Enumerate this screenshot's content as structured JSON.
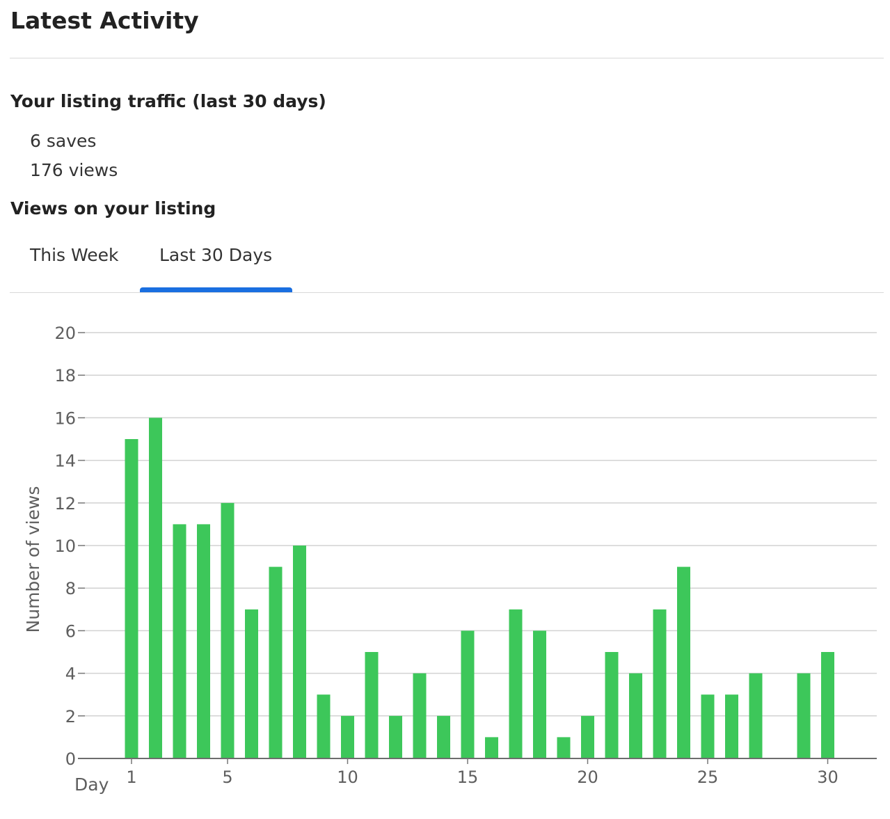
{
  "header": {
    "title": "Latest Activity"
  },
  "traffic": {
    "title": "Your listing traffic (last 30 days)",
    "saves": "6 saves",
    "views": "176 views"
  },
  "views_section": {
    "title": "Views on your listing",
    "tabs": [
      {
        "label": "This Week",
        "active": false
      },
      {
        "label": "Last 30 Days",
        "active": true
      }
    ],
    "accent_color": "#1a6fe0"
  },
  "chart_data": {
    "type": "bar",
    "title": "",
    "xlabel": "Day",
    "ylabel": "Number of views",
    "x": [
      1,
      2,
      3,
      4,
      5,
      6,
      7,
      8,
      9,
      10,
      11,
      12,
      13,
      14,
      15,
      16,
      17,
      18,
      19,
      20,
      21,
      22,
      23,
      24,
      25,
      26,
      27,
      28,
      29,
      30
    ],
    "values": [
      15,
      16,
      11,
      11,
      12,
      7,
      9,
      10,
      3,
      2,
      5,
      2,
      4,
      2,
      6,
      1,
      7,
      6,
      1,
      2,
      5,
      4,
      7,
      9,
      3,
      3,
      4,
      0,
      4,
      5
    ],
    "x_ticks": [
      1,
      5,
      10,
      15,
      20,
      25,
      30
    ],
    "y_ticks": [
      0,
      2,
      4,
      6,
      8,
      10,
      12,
      14,
      16,
      18,
      20
    ],
    "ylim": [
      0,
      20
    ],
    "grid": true,
    "bar_color": "#3dc75a"
  }
}
